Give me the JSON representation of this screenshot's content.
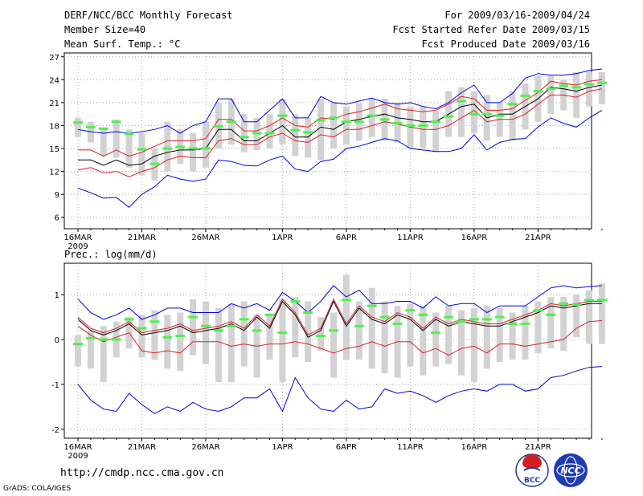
{
  "header": {
    "title": "DERF/NCC/BCC Monthly Forecast",
    "member_size": "Member Size=40",
    "variable": "Mean Surf. Temp.: °C",
    "forecast_period": "For 2009/03/16-2009/04/24",
    "refer_date": "Fcst Started Refer Date 2009/03/15",
    "produced_date": "Fcst Produced Date 2009/03/16"
  },
  "footer": {
    "url": "http://cmdp.ncc.cma.gov.cn",
    "credit": "GrADS: COLA/IGES",
    "logo_bcc": "BCC",
    "logo_ncc": "NCC"
  },
  "colors": {
    "outer": "#0000e6",
    "inner": "#dc1e28",
    "mean": "#000000",
    "box": "#d2d2d2",
    "median": "#50f050",
    "grid": "#a0a0a0"
  },
  "chart_data": [
    {
      "type": "line",
      "name": "temperature",
      "title": "Mean Surf. Temp.: °C",
      "ylim": [
        4.5,
        27.5
      ],
      "yticks": [
        6,
        9,
        12,
        15,
        18,
        21,
        24,
        27
      ],
      "x_tick_labels": [
        "16MAR",
        "21MAR",
        "26MAR",
        "1APR",
        "6APR",
        "11APR",
        "16APR",
        "21APR"
      ],
      "x_tick_days": [
        0,
        5,
        10,
        16,
        21,
        26,
        31,
        36
      ],
      "year_label": "2009",
      "series": [
        {
          "name": "max",
          "values": [
            9.8,
            9.2,
            8.5,
            8.6,
            7.3,
            9.0,
            10.0,
            11.5,
            11.0,
            10.7,
            11.0,
            13.5,
            13.3,
            12.8,
            12.7,
            13.5,
            14.0,
            12.3,
            12.0,
            13.3,
            13.6,
            15.0,
            15.3,
            15.8,
            16.3,
            16.0,
            15.0,
            14.8,
            14.6,
            14.6,
            15.0,
            16.8,
            14.8,
            15.8,
            16.2,
            16.3,
            17.8,
            19.0,
            18.3,
            17.8,
            19.0,
            20.0
          ]
        },
        {
          "name": "p25",
          "values": [
            12.2,
            12.5,
            11.8,
            12.0,
            11.3,
            12.0,
            12.5,
            13.5,
            14.0,
            13.8,
            13.8,
            16.0,
            16.3,
            15.5,
            15.5,
            16.5,
            17.0,
            16.0,
            15.8,
            16.8,
            16.5,
            17.5,
            17.5,
            18.0,
            18.5,
            18.2,
            17.8,
            17.5,
            17.5,
            18.0,
            19.0,
            20.0,
            18.5,
            18.8,
            18.8,
            19.5,
            20.8,
            22.0,
            22.0,
            21.7,
            22.5,
            22.8
          ]
        },
        {
          "name": "mean",
          "values": [
            13.5,
            13.5,
            12.8,
            13.5,
            12.8,
            13.0,
            14.0,
            14.5,
            14.8,
            14.8,
            15.0,
            17.5,
            17.5,
            16.0,
            16.0,
            17.0,
            18.0,
            16.5,
            16.5,
            17.8,
            17.5,
            18.5,
            18.8,
            19.2,
            19.5,
            19.0,
            18.8,
            18.5,
            18.5,
            19.5,
            20.5,
            20.8,
            19.0,
            19.5,
            19.5,
            20.5,
            21.5,
            23.0,
            22.8,
            22.5,
            23.0,
            23.3
          ]
        },
        {
          "name": "p75",
          "values": [
            14.8,
            14.8,
            14.0,
            14.8,
            14.0,
            14.5,
            15.3,
            16.0,
            16.0,
            16.0,
            16.3,
            18.8,
            18.8,
            17.3,
            17.3,
            18.0,
            19.0,
            18.0,
            17.8,
            19.0,
            18.8,
            19.5,
            19.8,
            20.3,
            20.8,
            20.2,
            20.0,
            19.8,
            20.0,
            20.8,
            21.8,
            21.5,
            20.0,
            20.0,
            20.2,
            21.3,
            22.3,
            23.8,
            23.5,
            23.3,
            23.8,
            24.0
          ]
        },
        {
          "name": "min",
          "values": [
            17.5,
            17.2,
            17.0,
            17.2,
            17.0,
            17.2,
            17.5,
            18.0,
            17.0,
            18.0,
            18.5,
            21.5,
            21.5,
            18.5,
            18.5,
            20.0,
            21.5,
            19.0,
            19.0,
            21.8,
            21.0,
            20.8,
            21.2,
            21.6,
            21.0,
            20.8,
            21.0,
            20.5,
            20.2,
            21.0,
            22.3,
            23.3,
            21.0,
            21.0,
            22.2,
            24.2,
            24.8,
            24.6,
            24.6,
            24.8,
            25.2,
            25.4
          ]
        }
      ],
      "boxes": [
        {
          "low": 16.5,
          "high": 19.0,
          "median": 18.4
        },
        {
          "low": 15.8,
          "high": 18.5,
          "median": 17.8
        },
        {
          "low": 14.0,
          "high": 17.5,
          "median": 17.6
        },
        {
          "low": 13.8,
          "high": 18.8,
          "median": 18.5
        },
        {
          "low": 12.5,
          "high": 17.5,
          "median": 16.9
        },
        {
          "low": 11.5,
          "high": 17.0,
          "median": 14.9
        },
        {
          "low": 10.8,
          "high": 15.0,
          "median": 13.0
        },
        {
          "low": 12.0,
          "high": 18.5,
          "median": 15.0
        },
        {
          "low": 13.0,
          "high": 17.5,
          "median": 15.2
        },
        {
          "low": 12.0,
          "high": 17.0,
          "median": 15.0
        },
        {
          "low": 12.5,
          "high": 18.5,
          "median": 15.0
        },
        {
          "low": 15.0,
          "high": 21.0,
          "median": 17.9
        },
        {
          "low": 15.5,
          "high": 21.5,
          "median": 18.5
        },
        {
          "low": 14.5,
          "high": 19.5,
          "median": 16.5
        },
        {
          "low": 14.8,
          "high": 19.0,
          "median": 17.0
        },
        {
          "low": 15.0,
          "high": 19.5,
          "median": 17.0
        },
        {
          "low": 15.5,
          "high": 21.5,
          "median": 19.3
        },
        {
          "low": 14.0,
          "high": 19.5,
          "median": 17.4
        },
        {
          "low": 13.8,
          "high": 19.0,
          "median": 17.1
        },
        {
          "low": 13.5,
          "high": 21.5,
          "median": 18.7
        },
        {
          "low": 15.0,
          "high": 21.0,
          "median": 19.0
        },
        {
          "low": 15.5,
          "high": 20.5,
          "median": 18.5
        },
        {
          "low": 16.0,
          "high": 21.0,
          "median": 18.5
        },
        {
          "low": 16.5,
          "high": 21.5,
          "median": 19.3
        },
        {
          "low": 16.0,
          "high": 21.5,
          "median": 18.8
        },
        {
          "low": 15.8,
          "high": 21.0,
          "median": 18.3
        },
        {
          "low": 15.0,
          "high": 20.5,
          "median": 18.0
        },
        {
          "low": 15.0,
          "high": 20.5,
          "median": 18.0
        },
        {
          "low": 14.5,
          "high": 20.0,
          "median": 18.5
        },
        {
          "low": 16.5,
          "high": 22.5,
          "median": 19.2
        },
        {
          "low": 16.5,
          "high": 23.0,
          "median": 21.2
        },
        {
          "low": 17.0,
          "high": 22.5,
          "median": 19.5
        },
        {
          "low": 16.0,
          "high": 22.0,
          "median": 19.5
        },
        {
          "low": 16.5,
          "high": 21.0,
          "median": 19.3
        },
        {
          "low": 16.0,
          "high": 22.5,
          "median": 20.8
        },
        {
          "low": 17.5,
          "high": 23.5,
          "median": 21.9
        },
        {
          "low": 18.5,
          "high": 24.5,
          "median": 22.5
        },
        {
          "low": 19.5,
          "high": 24.5,
          "median": 22.8
        },
        {
          "low": 20.0,
          "high": 24.0,
          "median": 23.2
        },
        {
          "low": 19.0,
          "high": 25.0,
          "median": 23.0
        },
        {
          "low": 20.5,
          "high": 25.0,
          "median": 23.4
        },
        {
          "low": 20.8,
          "high": 25.0,
          "median": 23.6
        }
      ]
    },
    {
      "type": "line",
      "name": "precipitation",
      "title": "Prec.: log(mm/d)",
      "ylim": [
        -2.2,
        1.7
      ],
      "yticks": [
        -2,
        -1,
        0,
        1
      ],
      "x_tick_labels": [
        "16MAR",
        "21MAR",
        "26MAR",
        "1APR",
        "6APR",
        "11APR",
        "16APR",
        "21APR"
      ],
      "x_tick_days": [
        0,
        5,
        10,
        16,
        21,
        26,
        31,
        36
      ],
      "year_label": "2009",
      "series": [
        {
          "name": "max",
          "values": [
            -1.0,
            -1.35,
            -1.55,
            -1.6,
            -1.2,
            -1.45,
            -1.65,
            -1.5,
            -1.6,
            -1.4,
            -1.55,
            -1.6,
            -1.5,
            -1.3,
            -1.3,
            -1.1,
            -1.6,
            -0.85,
            -1.3,
            -1.55,
            -1.6,
            -1.35,
            -1.55,
            -1.5,
            -1.1,
            -1.2,
            -1.15,
            -1.25,
            -1.4,
            -1.25,
            -1.15,
            -1.1,
            -1.15,
            -1.0,
            -1.0,
            -1.15,
            -1.1,
            -0.85,
            -0.8,
            -0.7,
            -0.62,
            -0.6
          ]
        },
        {
          "name": "p25",
          "values": [
            0.3,
            0.1,
            -0.05,
            0.05,
            0.15,
            -0.25,
            -0.3,
            -0.25,
            -0.3,
            -0.05,
            -0.05,
            -0.05,
            -0.15,
            -0.1,
            -0.15,
            -0.1,
            -0.1,
            -0.05,
            -0.1,
            -0.2,
            -0.3,
            -0.2,
            -0.15,
            -0.05,
            -0.15,
            -0.05,
            -0.05,
            -0.3,
            -0.2,
            -0.35,
            -0.2,
            -0.15,
            -0.3,
            -0.1,
            -0.1,
            -0.15,
            -0.1,
            -0.05,
            0.0,
            0.25,
            0.4,
            0.42
          ]
        },
        {
          "name": "mean",
          "values": [
            0.45,
            0.2,
            0.1,
            0.2,
            0.35,
            0.1,
            0.15,
            0.2,
            0.3,
            0.15,
            0.2,
            0.25,
            0.35,
            0.2,
            0.5,
            0.25,
            0.85,
            0.55,
            0.05,
            0.2,
            0.85,
            0.3,
            0.7,
            0.45,
            0.35,
            0.55,
            0.45,
            0.2,
            0.45,
            0.3,
            0.4,
            0.35,
            0.3,
            0.3,
            0.4,
            0.5,
            0.6,
            0.75,
            0.7,
            0.75,
            0.8,
            0.8
          ]
        },
        {
          "name": "p75",
          "values": [
            0.5,
            0.25,
            0.15,
            0.25,
            0.4,
            0.15,
            0.2,
            0.25,
            0.35,
            0.2,
            0.25,
            0.3,
            0.4,
            0.25,
            0.55,
            0.3,
            0.9,
            0.6,
            0.1,
            0.25,
            0.9,
            0.35,
            0.75,
            0.5,
            0.4,
            0.6,
            0.5,
            0.25,
            0.5,
            0.35,
            0.45,
            0.4,
            0.35,
            0.35,
            0.45,
            0.55,
            0.65,
            0.8,
            0.75,
            0.8,
            0.85,
            0.85
          ]
        },
        {
          "name": "min",
          "values": [
            0.9,
            0.6,
            0.45,
            0.55,
            0.7,
            0.45,
            0.55,
            0.7,
            0.7,
            0.6,
            0.6,
            0.6,
            0.8,
            0.7,
            0.8,
            0.65,
            1.05,
            0.85,
            0.6,
            0.85,
            1.2,
            0.95,
            1.1,
            0.8,
            0.8,
            0.85,
            0.85,
            0.7,
            0.95,
            0.75,
            0.8,
            0.8,
            0.6,
            0.75,
            0.75,
            0.75,
            0.95,
            1.15,
            1.2,
            1.15,
            1.18,
            1.2
          ]
        }
      ],
      "boxes": [
        {
          "low": -0.6,
          "high": 0.1,
          "median": -0.1
        },
        {
          "low": -0.65,
          "high": 0.2,
          "median": 0.03
        },
        {
          "low": -0.95,
          "high": 0.3,
          "median": 0.0
        },
        {
          "low": -0.4,
          "high": 0.4,
          "median": 0.0
        },
        {
          "low": -0.2,
          "high": 0.5,
          "median": 0.45
        },
        {
          "low": -0.4,
          "high": 0.55,
          "median": 0.25
        },
        {
          "low": -0.45,
          "high": 0.65,
          "median": 0.4
        },
        {
          "low": -0.65,
          "high": 0.55,
          "median": 0.05
        },
        {
          "low": -0.7,
          "high": 0.6,
          "median": 0.08
        },
        {
          "low": -0.35,
          "high": 0.9,
          "median": 0.5
        },
        {
          "low": -0.55,
          "high": 0.85,
          "median": 0.3
        },
        {
          "low": -0.95,
          "high": 0.7,
          "median": 0.2
        },
        {
          "low": -0.95,
          "high": 0.8,
          "median": 0.3
        },
        {
          "low": -0.6,
          "high": 0.85,
          "median": 0.45
        },
        {
          "low": -0.85,
          "high": 0.55,
          "median": 0.2
        },
        {
          "low": -0.45,
          "high": 0.55,
          "median": 0.55
        },
        {
          "low": -0.95,
          "high": 0.9,
          "median": 0.15
        },
        {
          "low": -0.4,
          "high": 0.95,
          "median": 0.85
        },
        {
          "low": -0.5,
          "high": 0.85,
          "median": 0.6
        },
        {
          "low": -0.25,
          "high": 0.5,
          "median": 0.08
        },
        {
          "low": -0.85,
          "high": 0.6,
          "median": 0.2
        },
        {
          "low": -0.45,
          "high": 1.45,
          "median": 0.88
        },
        {
          "low": -0.45,
          "high": 0.85,
          "median": 0.3
        },
        {
          "low": -0.65,
          "high": 1.15,
          "median": 0.75
        },
        {
          "low": -0.75,
          "high": 0.85,
          "median": 0.5
        },
        {
          "low": -0.85,
          "high": 0.75,
          "median": 0.35
        },
        {
          "low": -0.6,
          "high": 0.8,
          "median": 0.65
        },
        {
          "low": -0.8,
          "high": 0.75,
          "median": 0.55
        },
        {
          "low": -0.6,
          "high": 0.6,
          "median": 0.15
        },
        {
          "low": -0.55,
          "high": 0.75,
          "median": 0.5
        },
        {
          "low": -0.8,
          "high": 0.65,
          "median": 0.4
        },
        {
          "low": -0.95,
          "high": 0.7,
          "median": 0.45
        },
        {
          "low": -0.65,
          "high": 0.75,
          "median": 0.45
        },
        {
          "low": -0.5,
          "high": 0.7,
          "median": 0.5
        },
        {
          "low": -0.45,
          "high": 0.6,
          "median": 0.35
        },
        {
          "low": -0.45,
          "high": 0.75,
          "median": 0.35
        },
        {
          "low": -0.3,
          "high": 0.85,
          "median": 0.65
        },
        {
          "low": -0.2,
          "high": 0.95,
          "median": 0.55
        },
        {
          "low": -0.25,
          "high": 0.95,
          "median": 0.8
        },
        {
          "low": 0.05,
          "high": 1.0,
          "median": 0.78
        },
        {
          "low": -0.1,
          "high": 1.1,
          "median": 0.88
        },
        {
          "low": -0.1,
          "high": 1.25,
          "median": 0.88
        }
      ]
    }
  ]
}
